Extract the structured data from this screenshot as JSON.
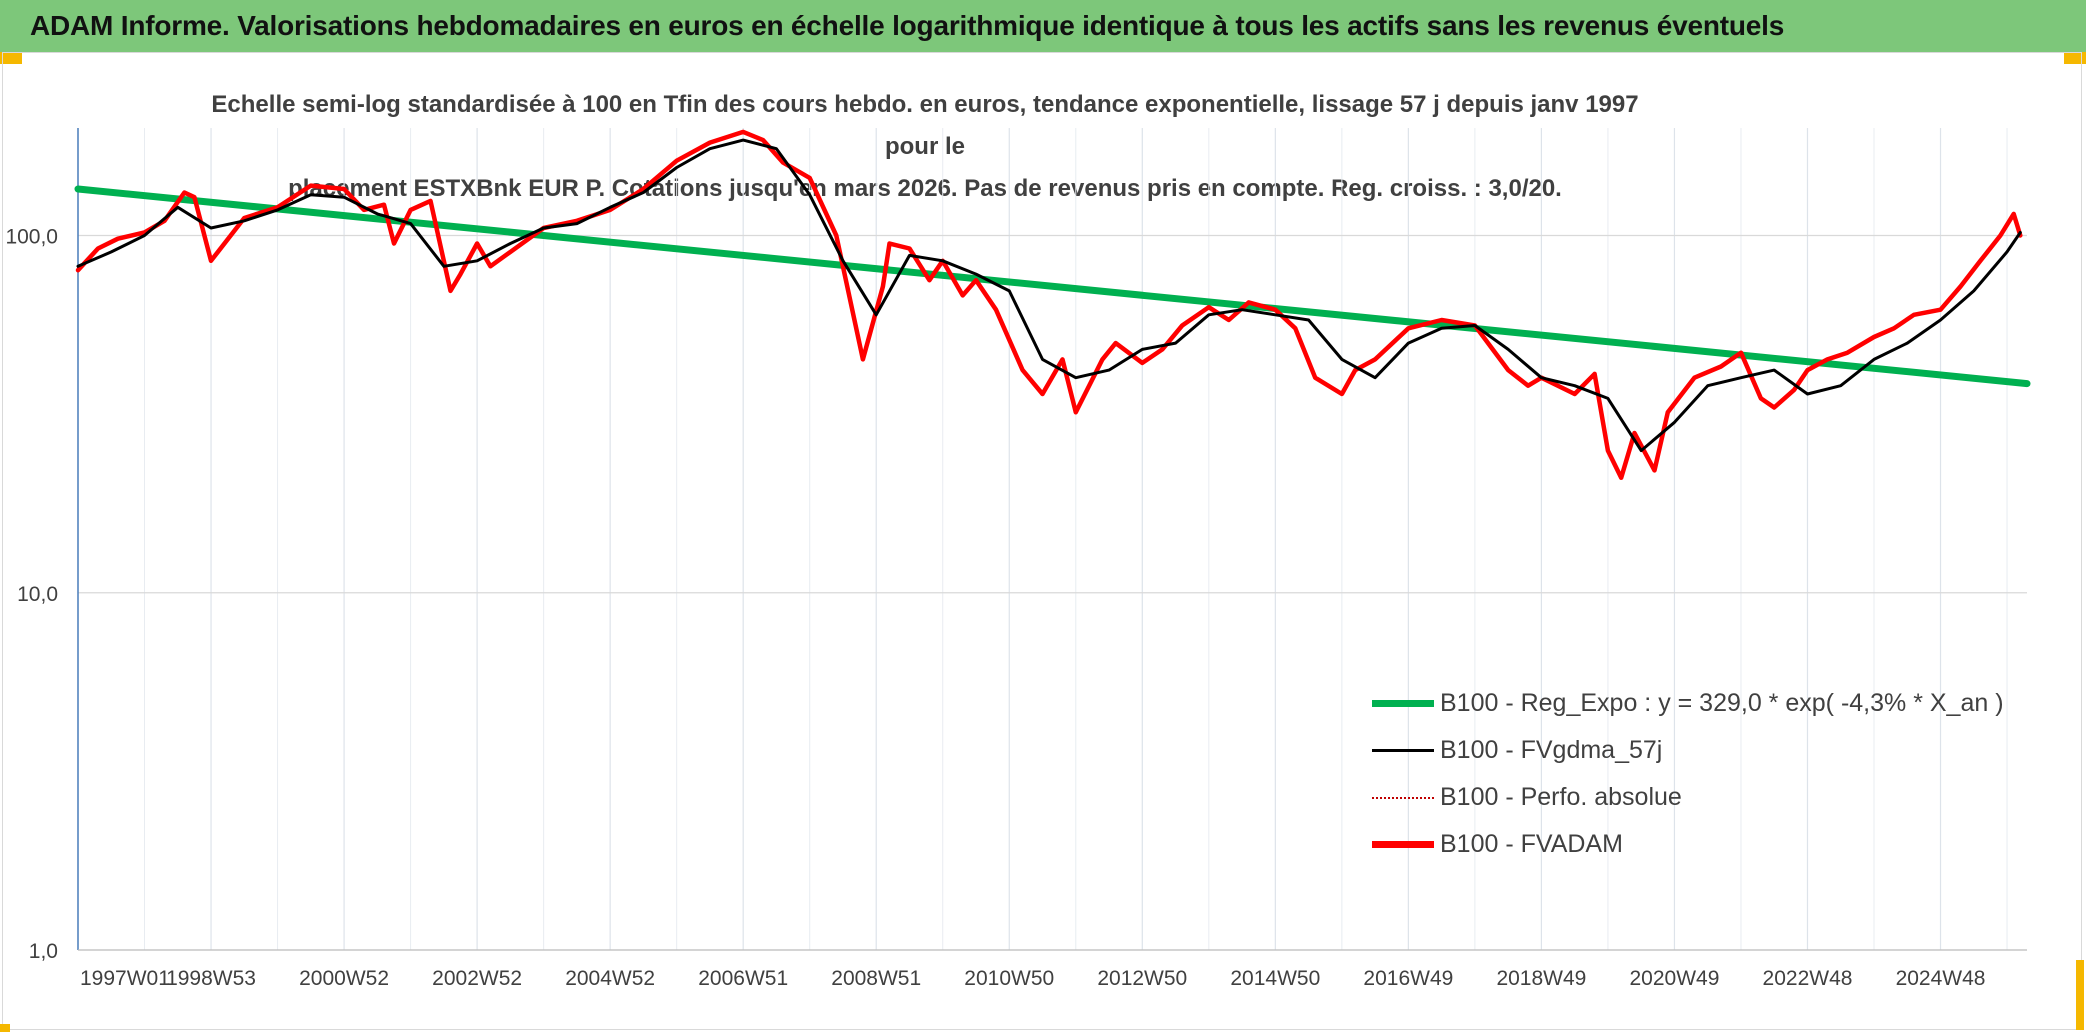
{
  "header": {
    "title": "ADAM Informe. Valorisations hebdomadaires en euros en échelle logarithmique identique à tous les actifs sans les revenus éventuels",
    "bar_color": "#7dc77a",
    "corner_color": "#f5b800"
  },
  "chart_data": {
    "type": "line",
    "title": "Echelle semi-log standardisée à 100 en Tfin des cours hebdo. en euros, tendance exponentielle, lissage 57 j depuis janv 1997 pour le placement ESTXBnk EUR P. Cotations jusqu'en mars 2026. Pas de revenus pris en compte. Reg. croiss. : 3,0/20.",
    "title_lines": [
      "Echelle semi-log standardisée à 100 en Tfin des cours hebdo. en euros, tendance exponentielle, lissage 57 j depuis janv 1997 pour le",
      "placement ESTXBnk EUR P. Cotations jusqu'en mars 2026. Pas de revenus pris en compte. Reg. croiss. : 3,0/20."
    ],
    "y_scale": "log",
    "ylim": [
      1,
      200
    ],
    "xlim": [
      1997.0,
      2026.3
    ],
    "y_ticks": [
      {
        "value": 1,
        "label": "1,0"
      },
      {
        "value": 10,
        "label": "10,0"
      },
      {
        "value": 100,
        "label": "100,0"
      }
    ],
    "x_ticks": [
      {
        "value": 1997.0,
        "label": "1997W01"
      },
      {
        "value": 1999.0,
        "label": "1998W53"
      },
      {
        "value": 2001.0,
        "label": "2000W52"
      },
      {
        "value": 2003.0,
        "label": "2002W52"
      },
      {
        "value": 2005.0,
        "label": "2004W52"
      },
      {
        "value": 2007.0,
        "label": "2006W51"
      },
      {
        "value": 2009.0,
        "label": "2008W51"
      },
      {
        "value": 2011.0,
        "label": "2010W50"
      },
      {
        "value": 2013.0,
        "label": "2012W50"
      },
      {
        "value": 2015.0,
        "label": "2014W50"
      },
      {
        "value": 2017.0,
        "label": "2016W49"
      },
      {
        "value": 2019.0,
        "label": "2018W49"
      },
      {
        "value": 2021.0,
        "label": "2020W49"
      },
      {
        "value": 2023.0,
        "label": "2022W48"
      },
      {
        "value": 2025.0,
        "label": "2024W48"
      }
    ],
    "grid": "vertical and horizontal, light gray",
    "legend_position": "bottom-right",
    "series": [
      {
        "name": "B100 - Reg_Expo : y = 329,0 * exp( -4,3% *  X_an )",
        "color": "#00b050",
        "style": "solid-thick",
        "x": [
          1997.0,
          2026.3
        ],
        "y": [
          135,
          38.5
        ]
      },
      {
        "name": "B100 - FVgdma_57j",
        "color": "#000000",
        "style": "solid",
        "x": [
          1997.0,
          1997.5,
          1998.0,
          1998.5,
          1999.0,
          1999.5,
          2000.0,
          2000.5,
          2001.0,
          2001.5,
          2002.0,
          2002.5,
          2003.0,
          2003.5,
          2004.0,
          2004.5,
          2005.0,
          2005.5,
          2006.0,
          2006.5,
          2007.0,
          2007.5,
          2008.0,
          2008.5,
          2009.0,
          2009.5,
          2010.0,
          2010.5,
          2011.0,
          2011.5,
          2012.0,
          2012.5,
          2013.0,
          2013.5,
          2014.0,
          2014.5,
          2015.0,
          2015.5,
          2016.0,
          2016.5,
          2017.0,
          2017.5,
          2018.0,
          2018.5,
          2019.0,
          2019.5,
          2020.0,
          2020.5,
          2021.0,
          2021.5,
          2022.0,
          2022.5,
          2023.0,
          2023.5,
          2024.0,
          2024.5,
          2025.0,
          2025.5,
          2026.0,
          2026.2
        ],
        "y": [
          82,
          90,
          100,
          120,
          105,
          110,
          118,
          130,
          128,
          115,
          108,
          82,
          85,
          95,
          105,
          108,
          120,
          132,
          155,
          175,
          185,
          175,
          130,
          85,
          60,
          88,
          85,
          78,
          70,
          45,
          40,
          42,
          48,
          50,
          60,
          62,
          60,
          58,
          45,
          40,
          50,
          55,
          56,
          48,
          40,
          38,
          35,
          25,
          30,
          38,
          40,
          42,
          36,
          38,
          45,
          50,
          58,
          70,
          90,
          102
        ]
      },
      {
        "name": "B100 - Perfo. absolue",
        "color": "#c00000",
        "style": "dotted",
        "x": [
          1997.0,
          1997.3,
          1997.6,
          1998.0,
          1998.3,
          1998.6,
          1998.75,
          1999.0,
          1999.5,
          2000.0,
          2000.5,
          2001.0,
          2001.3,
          2001.6,
          2001.75,
          2002.0,
          2002.3,
          2002.6,
          2002.75,
          2003.0,
          2003.2,
          2003.5,
          2004.0,
          2004.5,
          2005.0,
          2005.5,
          2006.0,
          2006.5,
          2007.0,
          2007.3,
          2007.6,
          2008.0,
          2008.4,
          2008.8,
          2009.1,
          2009.2,
          2009.5,
          2009.8,
          2010.0,
          2010.3,
          2010.5,
          2010.8,
          2011.2,
          2011.5,
          2011.8,
          2012.0,
          2012.4,
          2012.6,
          2013.0,
          2013.3,
          2013.6,
          2014.0,
          2014.3,
          2014.6,
          2015.0,
          2015.3,
          2015.6,
          2016.0,
          2016.2,
          2016.5,
          2017.0,
          2017.5,
          2018.0,
          2018.5,
          2018.8,
          2019.0,
          2019.5,
          2019.8,
          2020.0,
          2020.2,
          2020.4,
          2020.7,
          2020.9,
          2021.3,
          2021.7,
          2022.0,
          2022.3,
          2022.5,
          2022.8,
          2023.0,
          2023.3,
          2023.6,
          2024.0,
          2024.3,
          2024.6,
          2025.0,
          2025.3,
          2025.6,
          2025.9,
          2026.1,
          2026.2
        ],
        "y": [
          80,
          92,
          98,
          102,
          110,
          132,
          128,
          85,
          112,
          120,
          138,
          135,
          118,
          122,
          95,
          118,
          125,
          70,
          78,
          95,
          82,
          90,
          105,
          110,
          118,
          135,
          162,
          182,
          195,
          185,
          160,
          145,
          100,
          45,
          72,
          95,
          92,
          75,
          85,
          68,
          75,
          62,
          42,
          36,
          45,
          32,
          45,
          50,
          44,
          48,
          56,
          63,
          58,
          65,
          62,
          55,
          40,
          36,
          42,
          45,
          55,
          58,
          56,
          42,
          38,
          40,
          36,
          41,
          25,
          21,
          28,
          22,
          32,
          40,
          43,
          47,
          35,
          33,
          37,
          42,
          45,
          47,
          52,
          55,
          60,
          62,
          72,
          85,
          100,
          115,
          100
        ]
      },
      {
        "name": "B100 - FVADAM",
        "color": "#ff0000",
        "style": "solid-thick",
        "x": [
          1997.0,
          1997.3,
          1997.6,
          1998.0,
          1998.3,
          1998.6,
          1998.75,
          1999.0,
          1999.5,
          2000.0,
          2000.5,
          2001.0,
          2001.3,
          2001.6,
          2001.75,
          2002.0,
          2002.3,
          2002.6,
          2002.75,
          2003.0,
          2003.2,
          2003.5,
          2004.0,
          2004.5,
          2005.0,
          2005.5,
          2006.0,
          2006.5,
          2007.0,
          2007.3,
          2007.6,
          2008.0,
          2008.4,
          2008.8,
          2009.1,
          2009.2,
          2009.5,
          2009.8,
          2010.0,
          2010.3,
          2010.5,
          2010.8,
          2011.2,
          2011.5,
          2011.8,
          2012.0,
          2012.4,
          2012.6,
          2013.0,
          2013.3,
          2013.6,
          2014.0,
          2014.3,
          2014.6,
          2015.0,
          2015.3,
          2015.6,
          2016.0,
          2016.2,
          2016.5,
          2017.0,
          2017.5,
          2018.0,
          2018.5,
          2018.8,
          2019.0,
          2019.5,
          2019.8,
          2020.0,
          2020.2,
          2020.4,
          2020.7,
          2020.9,
          2021.3,
          2021.7,
          2022.0,
          2022.3,
          2022.5,
          2022.8,
          2023.0,
          2023.3,
          2023.6,
          2024.0,
          2024.3,
          2024.6,
          2025.0,
          2025.3,
          2025.6,
          2025.9,
          2026.1,
          2026.2
        ],
        "y": [
          80,
          92,
          98,
          102,
          110,
          132,
          128,
          85,
          112,
          120,
          138,
          135,
          118,
          122,
          95,
          118,
          125,
          70,
          78,
          95,
          82,
          90,
          105,
          110,
          118,
          135,
          162,
          182,
          195,
          185,
          160,
          145,
          100,
          45,
          72,
          95,
          92,
          75,
          85,
          68,
          75,
          62,
          42,
          36,
          45,
          32,
          45,
          50,
          44,
          48,
          56,
          63,
          58,
          65,
          62,
          55,
          40,
          36,
          42,
          45,
          55,
          58,
          56,
          42,
          38,
          40,
          36,
          41,
          25,
          21,
          28,
          22,
          32,
          40,
          43,
          47,
          35,
          33,
          37,
          42,
          45,
          47,
          52,
          55,
          60,
          62,
          72,
          85,
          100,
          115,
          100
        ]
      }
    ]
  }
}
